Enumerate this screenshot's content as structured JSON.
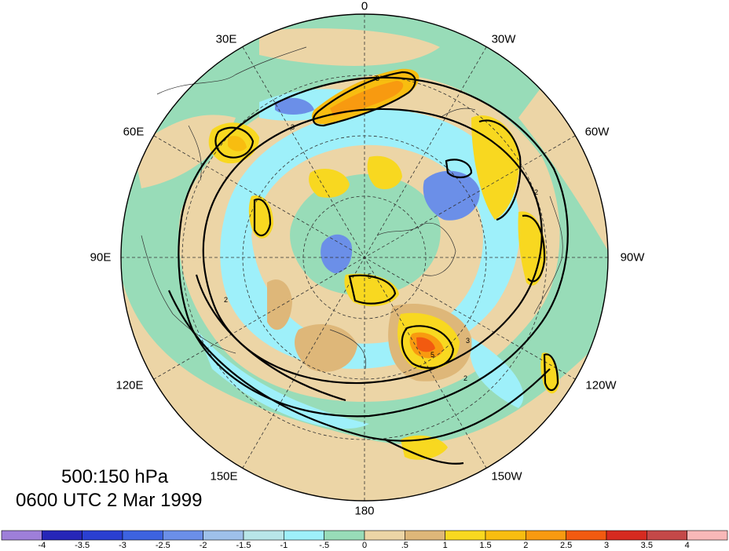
{
  "map": {
    "longitude_labels": [
      {
        "text": "0",
        "pos": "top"
      },
      {
        "text": "30W",
        "pos": "top-right"
      },
      {
        "text": "60W",
        "pos": "upper-right"
      },
      {
        "text": "90W",
        "pos": "right"
      },
      {
        "text": "120W",
        "pos": "lower-right"
      },
      {
        "text": "150W",
        "pos": "bottom-right"
      },
      {
        "text": "180",
        "pos": "bottom"
      },
      {
        "text": "150E",
        "pos": "bottom-left"
      },
      {
        "text": "120E",
        "pos": "lower-left"
      },
      {
        "text": "90E",
        "pos": "left"
      },
      {
        "text": "60E",
        "pos": "upper-left"
      },
      {
        "text": "30E",
        "pos": "top-left"
      }
    ],
    "caption": {
      "line1": "500:150 hPa",
      "line2": "0600 UTC 2 Mar 1999"
    },
    "projection": "north polar stereographic",
    "contour_labels": [
      "2",
      "3",
      "5"
    ]
  },
  "colorbar": {
    "ticks": [
      "-4",
      "-3.5",
      "-3",
      "-2.5",
      "-2",
      "-1.5",
      "-1",
      "-.5",
      "0",
      ".5",
      "1",
      "1.5",
      "2",
      "2.5",
      "3",
      "3.5",
      "4"
    ],
    "colors": [
      "#9e7fd9",
      "#2626b8",
      "#2a3fd1",
      "#3d63e0",
      "#6b8fe8",
      "#9ec0ea",
      "#b8e6e8",
      "#9ef0fa",
      "#98dcb8",
      "#ecd5a6",
      "#deb779",
      "#f8d820",
      "#f8bd10",
      "#f89a10",
      "#f25a10",
      "#d62a20",
      "#c44848",
      "#f8b8b8"
    ]
  }
}
